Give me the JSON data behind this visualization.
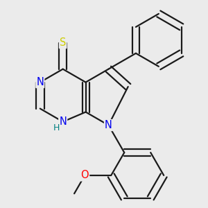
{
  "bg_color": "#ebebeb",
  "bond_color": "#1a1a1a",
  "bond_width": 1.6,
  "dbo": 0.018,
  "atom_colors": {
    "N": "#0000ee",
    "S": "#cccc00",
    "O": "#ff0000",
    "H": "#008080"
  },
  "font_size": 10.5
}
